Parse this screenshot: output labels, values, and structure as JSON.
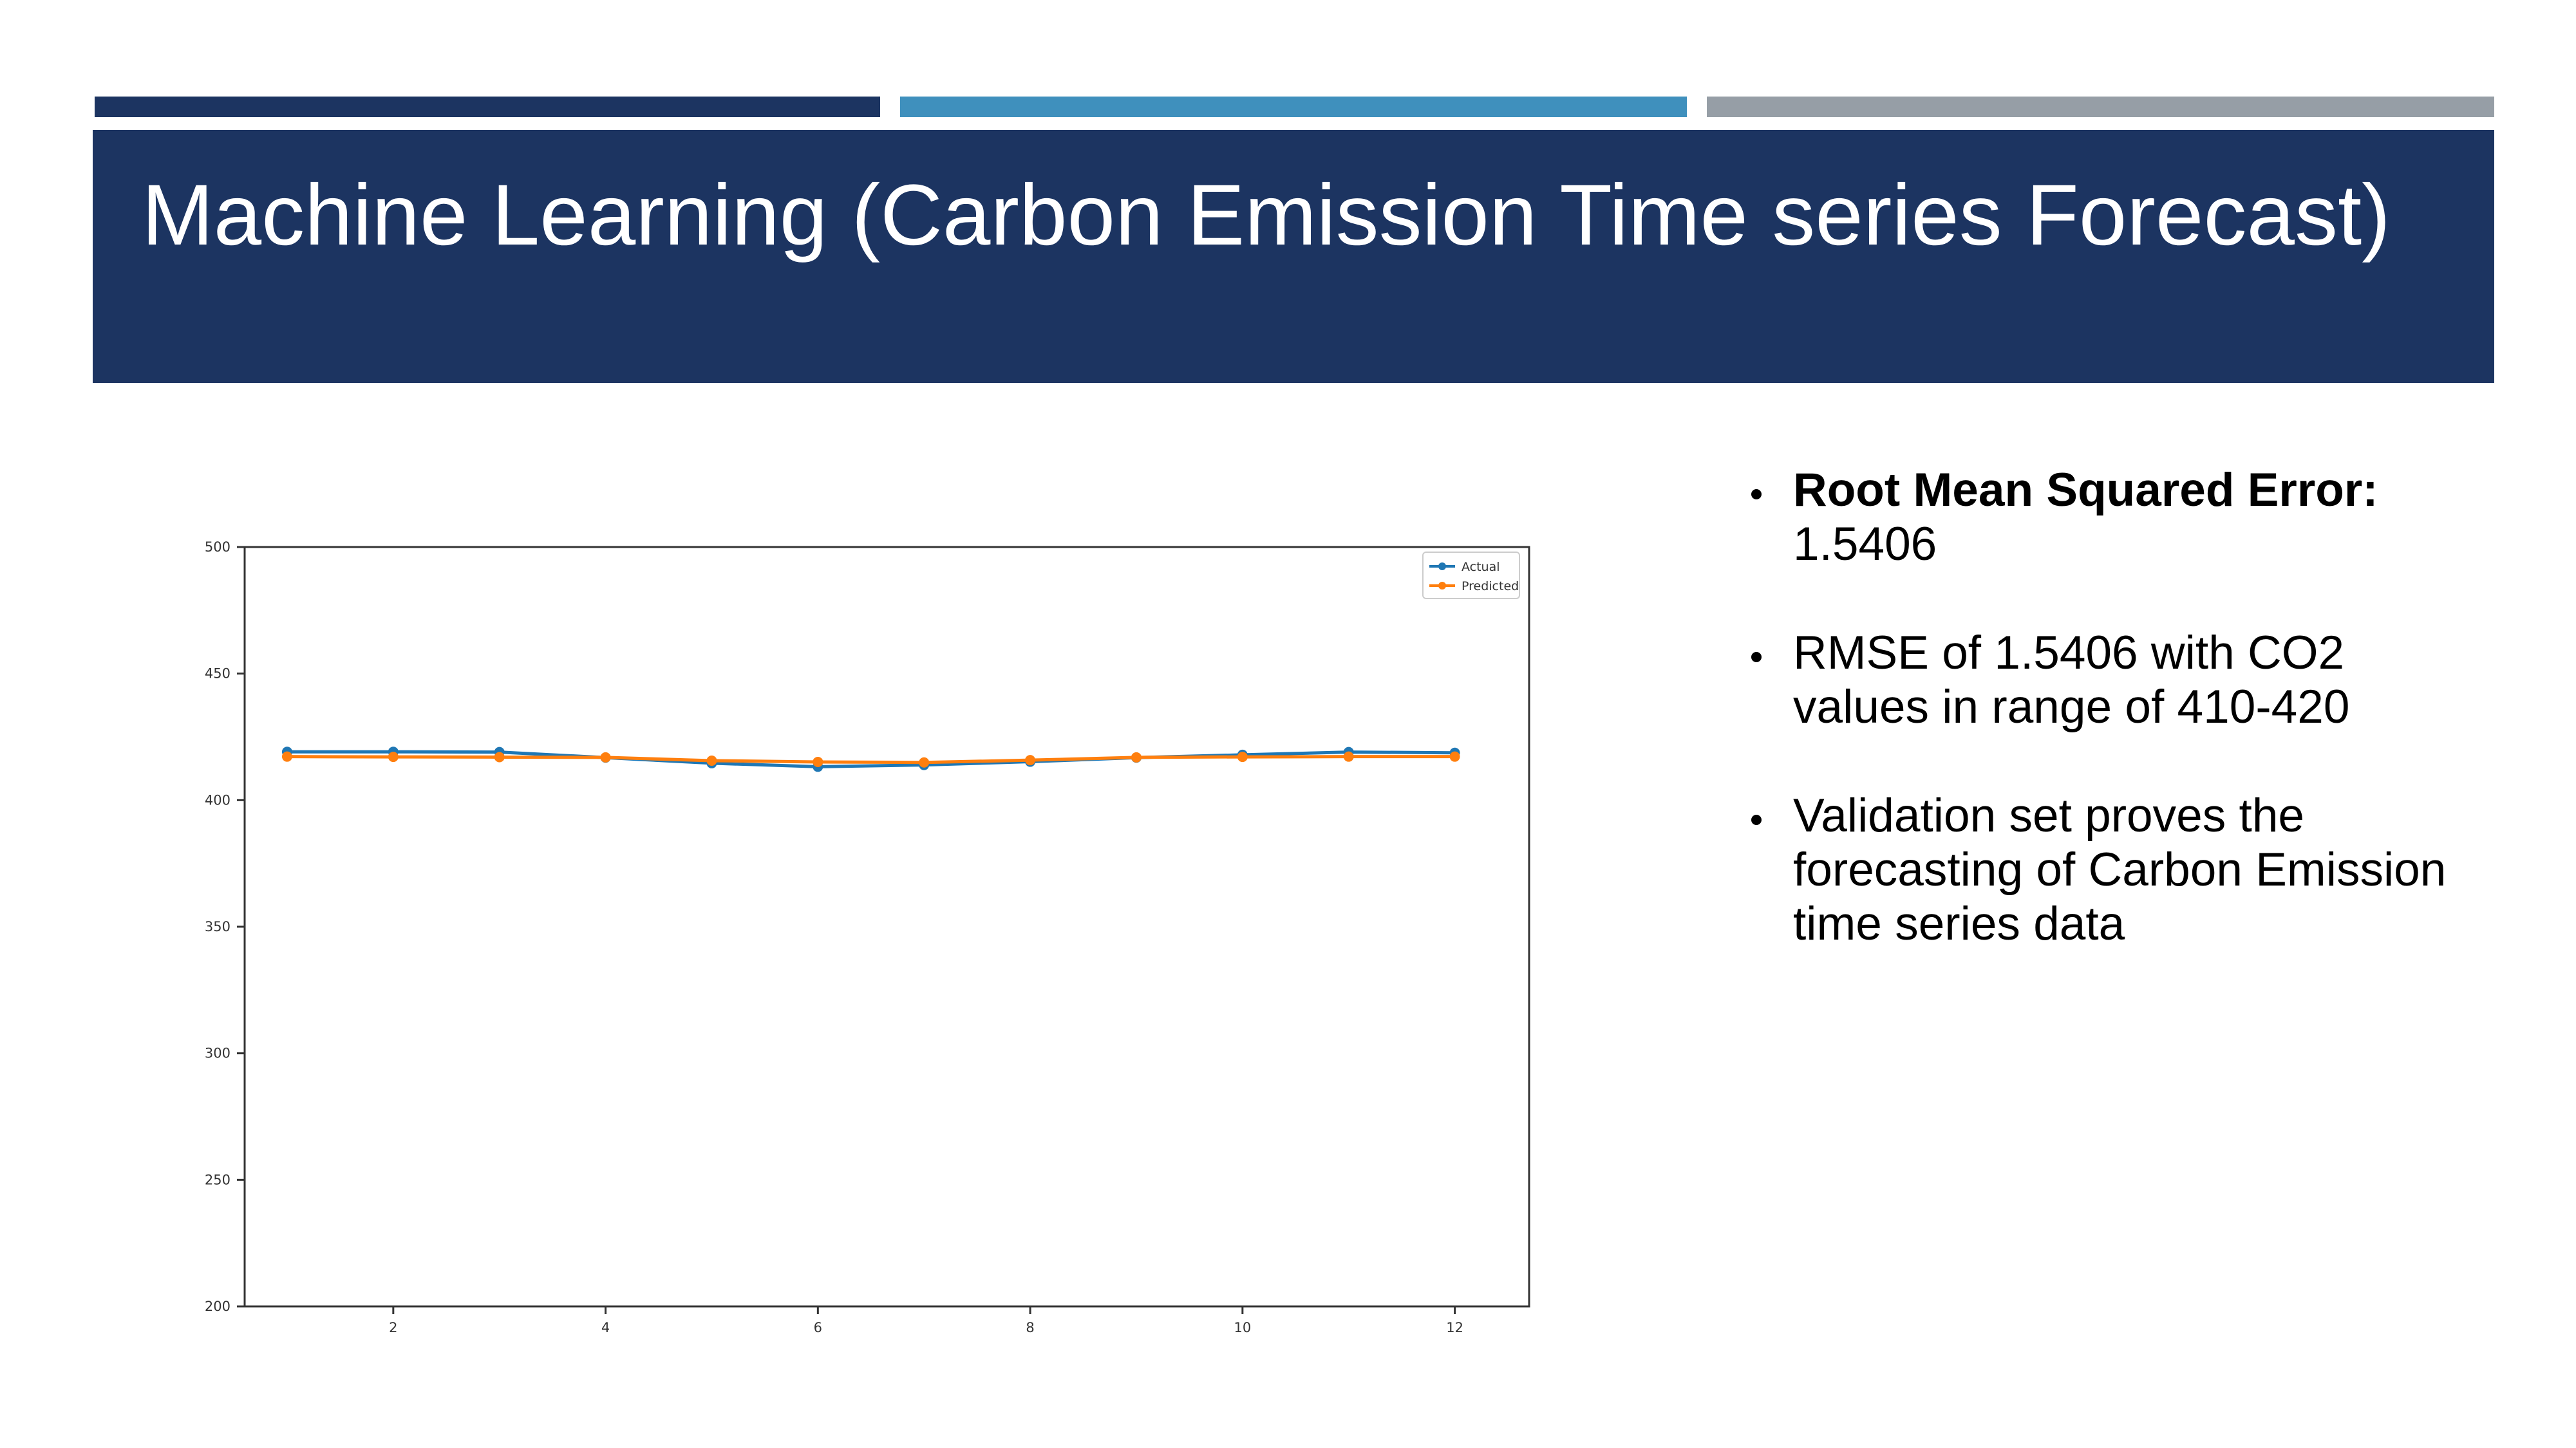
{
  "slide": {
    "title": "Machine Learning (Carbon Emission Time series Forecast)",
    "accent_colors": [
      "#1c3461",
      "#3f90bd",
      "#969ea6"
    ],
    "bullets": [
      {
        "bold": "Root Mean Squared Error:",
        "text": "1.5406"
      },
      {
        "bold": "",
        "text": "RMSE of 1.5406 with CO2 values in range of 410-420"
      },
      {
        "bold": "",
        "text": "Validation set proves the forecasting of Carbon Emission time series data"
      }
    ]
  },
  "chart_data": {
    "type": "line",
    "x": [
      1,
      2,
      3,
      4,
      5,
      6,
      7,
      8,
      9,
      10,
      11,
      12
    ],
    "xticks": [
      2,
      4,
      6,
      8,
      10,
      12
    ],
    "yticks": [
      200,
      250,
      300,
      350,
      400,
      450,
      500
    ],
    "xlim": [
      0.6,
      12.7
    ],
    "ylim": [
      200,
      500
    ],
    "grid": false,
    "legend": "top-right",
    "series": [
      {
        "name": "Actual",
        "color": "#1f77b4",
        "values": [
          419.1,
          419.1,
          419.0,
          416.8,
          414.6,
          413.2,
          413.9,
          415.2,
          416.8,
          417.9,
          419.0,
          418.7
        ]
      },
      {
        "name": "Predicted",
        "color": "#ff7f0e",
        "values": [
          417.2,
          417.1,
          417.0,
          416.9,
          415.6,
          415.1,
          414.9,
          415.8,
          416.9,
          417.1,
          417.2,
          417.2
        ]
      }
    ]
  }
}
